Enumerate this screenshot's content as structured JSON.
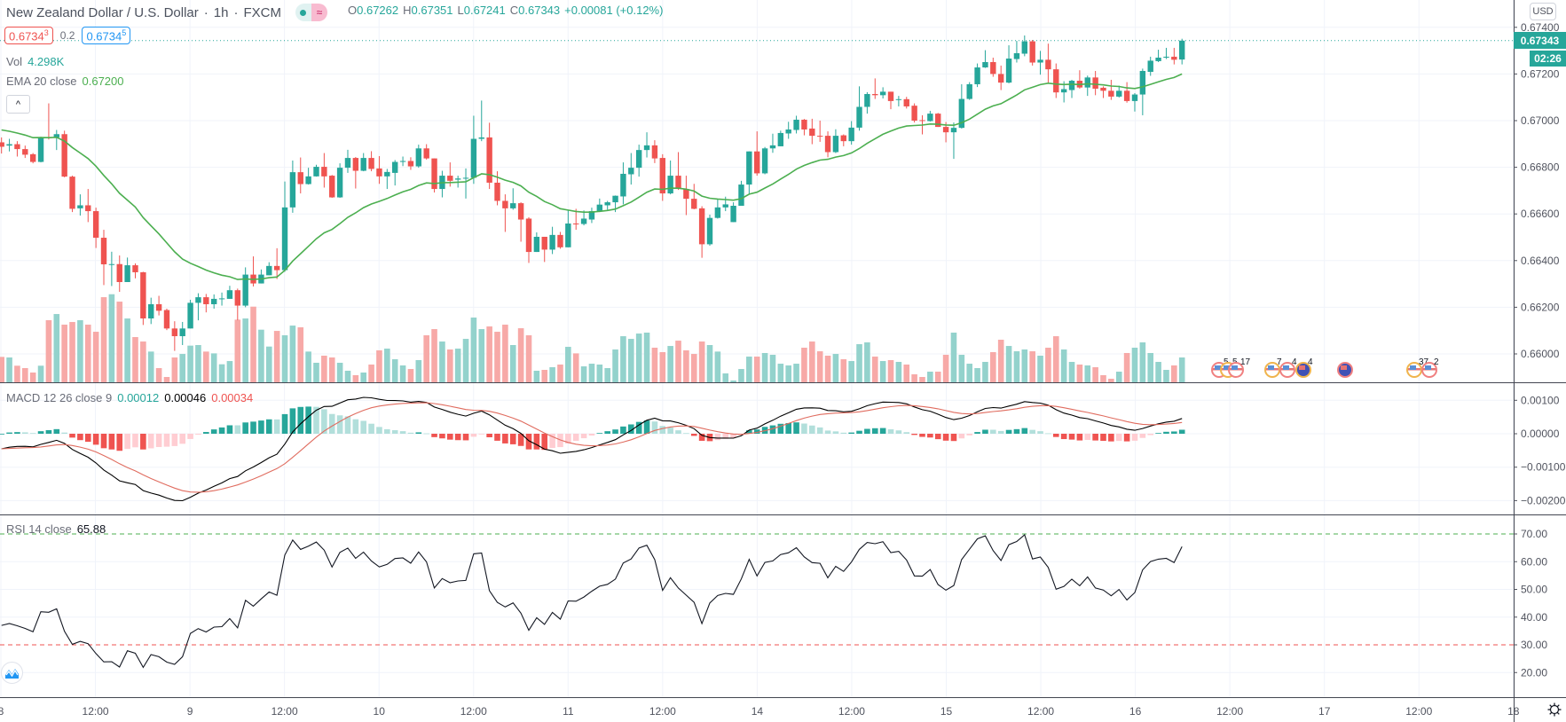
{
  "header": {
    "symbol": "New Zealand Dollar / U.S. Dollar",
    "interval": "1h",
    "exchange": "FXCM",
    "separator": "·",
    "status_icons": [
      "market-open-dot-icon",
      "delayed-data-icon"
    ],
    "delayed_glyph": "≈",
    "ohlc": {
      "o_label": "O",
      "o": "0.67262",
      "h_label": "H",
      "h": "0.67351",
      "l_label": "L",
      "l": "0.67241",
      "c_label": "C",
      "c": "0.67343",
      "change": "+0.00081 (+0.12%)"
    },
    "sell": {
      "price": "0.6734",
      "pip": "3"
    },
    "spread": "0.2",
    "buy": {
      "price": "0.6734",
      "pip": "5"
    },
    "volume": {
      "label": "Vol",
      "value": "4.298K"
    },
    "ema": {
      "label": "EMA 20 close",
      "value": "0.67200"
    },
    "collapse_glyph": "^"
  },
  "macd_legend": {
    "label": "MACD 12 26 close 9",
    "histogram": "0.00012",
    "macd": "0.00046",
    "signal": "0.00034"
  },
  "rsi_legend": {
    "label": "RSI 14 close",
    "value": "65.88"
  },
  "price_axis": {
    "currency": "USD",
    "ticks": [
      "0.67400",
      "0.67200",
      "0.67000",
      "0.66800",
      "0.66600",
      "0.66400",
      "0.66200",
      "0.66000"
    ],
    "last_price": "0.67343",
    "countdown": "02:26"
  },
  "macd_axis": {
    "ticks": [
      "0.00100",
      "0.00000",
      "−0.00100",
      "−0.00200"
    ]
  },
  "rsi_axis": {
    "ticks": [
      "70.00",
      "60.00",
      "50.00",
      "40.00",
      "30.00",
      "20.00"
    ]
  },
  "time_axis": {
    "ticks": [
      "8",
      "12:00",
      "9",
      "12:00",
      "10",
      "12:00",
      "11",
      "12:00",
      "14",
      "12:00",
      "15",
      "12:00",
      "16",
      "12:00",
      "17",
      "12:00",
      "18"
    ]
  },
  "events": [
    {
      "flag": "us-flag-icon",
      "label": "5"
    },
    {
      "flag": "us-flag-icon",
      "label": "5"
    },
    {
      "flag": "us-flag-icon",
      "label": "17"
    },
    {
      "flag": "us-flag-icon",
      "label": "7"
    },
    {
      "flag": "us-flag-icon",
      "label": "4"
    },
    {
      "flag": "nz-flag-icon",
      "label": "4"
    },
    {
      "flag": "nz-flag-icon",
      "label": ""
    },
    {
      "flag": "us-flag-icon",
      "label": "37"
    },
    {
      "flag": "us-flag-icon",
      "label": "2"
    }
  ],
  "colors": {
    "up": "#26a69a",
    "down": "#ef5350",
    "ema": "#4caf50",
    "macd": "#000000",
    "signal": "#e06c5f",
    "rsi": "#131722",
    "overbought": "#4caf50",
    "oversold": "#ef5350"
  },
  "chart_data": {
    "type": "candlestick",
    "interval": "1h",
    "price_range": [
      0.6595,
      0.6745
    ],
    "indicators": {
      "ema": {
        "period": 20,
        "source": "close"
      },
      "macd": {
        "fast": 12,
        "slow": 26,
        "signal": 9
      },
      "rsi": {
        "period": 14,
        "levels": [
          70,
          30
        ]
      }
    },
    "open": [
      0.66907,
      0.66893,
      0.66899,
      0.66878,
      0.66856,
      0.66823,
      0.66928,
      0.66928,
      0.66942,
      0.6676,
      0.66624,
      0.66637,
      0.66612,
      0.66498,
      0.66385,
      0.66385,
      0.66308,
      0.6638,
      0.6635,
      0.66152,
      0.66213,
      0.66188,
      0.66109,
      0.66076,
      0.66109,
      0.66219,
      0.66243,
      0.66213,
      0.66236,
      0.66236,
      0.66273,
      0.66207,
      0.6634,
      0.66302,
      0.66337,
      0.66377,
      0.66359,
      0.66628,
      0.66779,
      0.66728,
      0.66761,
      0.66802,
      0.66764,
      0.66671,
      0.66798,
      0.6684,
      0.66785,
      0.6684,
      0.66795,
      0.66761,
      0.66776,
      0.66823,
      0.66827,
      0.66804,
      0.66881,
      0.66838,
      0.66707,
      0.66764,
      0.66747,
      0.66752,
      0.66755,
      0.66922,
      0.66928,
      0.66734,
      0.66656,
      0.66624,
      0.66646,
      0.6658,
      0.66437,
      0.66502,
      0.66447,
      0.6651,
      0.66457,
      0.66559,
      0.66557,
      0.66576,
      0.66612,
      0.66637,
      0.6665,
      0.66675,
      0.6677,
      0.66798,
      0.66874,
      0.66894,
      0.6684,
      0.66688,
      0.66764,
      0.66707,
      0.66665,
      0.66624,
      0.6647,
      0.66583,
      0.66628,
      0.66565,
      0.66635,
      0.66726,
      0.66868,
      0.66774,
      0.66881,
      0.6689,
      0.66945,
      0.6696,
      0.67004,
      0.66966,
      0.66935,
      0.66935,
      0.66865,
      0.66937,
      0.66912,
      0.6697,
      0.67059,
      0.67114,
      0.67109,
      0.67124,
      0.67089,
      0.67092,
      0.67064,
      0.67002,
      0.66998,
      0.6703,
      0.66973,
      0.6695,
      0.66969,
      0.67093,
      0.67156,
      0.67228,
      0.67251,
      0.672,
      0.67163,
      0.67264,
      0.67287,
      0.6734,
      0.67249,
      0.67261,
      0.6722,
      0.67121,
      0.67131,
      0.67171,
      0.67142,
      0.67185,
      0.67141,
      0.67128,
      0.67103,
      0.67128,
      0.67084,
      0.67112,
      0.67209,
      0.67255,
      0.6727,
      0.67274,
      0.67262
    ],
    "high": [
      0.66928,
      0.66922,
      0.66912,
      0.66893,
      0.66861,
      0.66931,
      0.67074,
      0.6696,
      0.66957,
      0.66764,
      0.66684,
      0.66707,
      0.66627,
      0.66532,
      0.66438,
      0.66422,
      0.66413,
      0.66388,
      0.66352,
      0.66241,
      0.66249,
      0.66194,
      0.6614,
      0.66137,
      0.66232,
      0.6626,
      0.66257,
      0.66255,
      0.66263,
      0.66292,
      0.6628,
      0.66371,
      0.66418,
      0.66362,
      0.66393,
      0.66453,
      0.66739,
      0.66829,
      0.66842,
      0.66798,
      0.66811,
      0.66861,
      0.66767,
      0.66817,
      0.66875,
      0.66844,
      0.66861,
      0.66869,
      0.66848,
      0.66793,
      0.66831,
      0.66846,
      0.66843,
      0.66897,
      0.66899,
      0.66838,
      0.66785,
      0.66821,
      0.66764,
      0.66795,
      0.67021,
      0.67086,
      0.66991,
      0.66783,
      0.66684,
      0.6671,
      0.6665,
      0.66586,
      0.66521,
      0.66502,
      0.66545,
      0.66523,
      0.66615,
      0.66622,
      0.66615,
      0.66627,
      0.66666,
      0.66656,
      0.66679,
      0.66821,
      0.66861,
      0.66897,
      0.6695,
      0.66916,
      0.66856,
      0.66829,
      0.66865,
      0.66764,
      0.66729,
      0.66633,
      0.66597,
      0.66662,
      0.66674,
      0.6665,
      0.66742,
      0.66868,
      0.66954,
      0.66887,
      0.66944,
      0.66957,
      0.66995,
      0.67021,
      0.67007,
      0.67008,
      0.67,
      0.66954,
      0.66963,
      0.66941,
      0.66998,
      0.67147,
      0.67122,
      0.67181,
      0.67143,
      0.67124,
      0.67106,
      0.67102,
      0.67074,
      0.67023,
      0.67042,
      0.67033,
      0.66994,
      0.66992,
      0.67156,
      0.67165,
      0.67245,
      0.67302,
      0.6727,
      0.67236,
      0.67323,
      0.67342,
      0.67365,
      0.67346,
      0.67299,
      0.6733,
      0.67245,
      0.67169,
      0.67175,
      0.67216,
      0.67193,
      0.67213,
      0.67147,
      0.67175,
      0.6715,
      0.67165,
      0.67118,
      0.67223,
      0.67274,
      0.67304,
      0.67312,
      0.67312,
      0.67351
    ],
    "low": [
      0.66859,
      0.66868,
      0.66846,
      0.6684,
      0.66817,
      0.66821,
      0.66919,
      0.66874,
      0.66757,
      0.66608,
      0.66593,
      0.66565,
      0.66454,
      0.66295,
      0.66291,
      0.66266,
      0.66308,
      0.66324,
      0.66124,
      0.66128,
      0.66165,
      0.66102,
      0.66013,
      0.66038,
      0.66109,
      0.66144,
      0.66178,
      0.66194,
      0.66207,
      0.66236,
      0.66144,
      0.662,
      0.66289,
      0.66302,
      0.66337,
      0.66321,
      0.66352,
      0.66605,
      0.66688,
      0.66726,
      0.6676,
      0.66713,
      0.66669,
      0.66669,
      0.66776,
      0.66709,
      0.66783,
      0.66783,
      0.66729,
      0.66707,
      0.66722,
      0.66805,
      0.66789,
      0.66798,
      0.66833,
      0.66692,
      0.66671,
      0.66717,
      0.66713,
      0.66666,
      0.66729,
      0.66912,
      0.66707,
      0.66637,
      0.66523,
      0.66618,
      0.66481,
      0.6639,
      0.66437,
      0.66394,
      0.66428,
      0.66451,
      0.66457,
      0.66532,
      0.66551,
      0.66561,
      0.66608,
      0.66618,
      0.66608,
      0.66641,
      0.66726,
      0.6676,
      0.66842,
      0.66818,
      0.66656,
      0.66684,
      0.66703,
      0.66595,
      0.6662,
      0.66412,
      0.66464,
      0.6658,
      0.66612,
      0.66565,
      0.66635,
      0.66688,
      0.66764,
      0.6677,
      0.66862,
      0.6689,
      0.66922,
      0.66945,
      0.66937,
      0.66899,
      0.66909,
      0.66843,
      0.66861,
      0.6689,
      0.66897,
      0.66957,
      0.6703,
      0.67093,
      0.67095,
      0.67049,
      0.67061,
      0.67052,
      0.66992,
      0.66941,
      0.66996,
      0.66973,
      0.66907,
      0.66836,
      0.66966,
      0.67089,
      0.67144,
      0.67226,
      0.67188,
      0.67131,
      0.6716,
      0.67249,
      0.67276,
      0.67236,
      0.67197,
      0.67163,
      0.67097,
      0.67078,
      0.67097,
      0.67137,
      0.67106,
      0.67109,
      0.67097,
      0.67089,
      0.67099,
      0.67077,
      0.67039,
      0.67023,
      0.67192,
      0.67251,
      0.67264,
      0.67241,
      0.67241
    ],
    "close": [
      0.66888,
      0.66899,
      0.66878,
      0.66854,
      0.66823,
      0.66928,
      0.66924,
      0.66942,
      0.6676,
      0.66622,
      0.66637,
      0.66612,
      0.66498,
      0.66384,
      0.66385,
      0.66308,
      0.6638,
      0.6635,
      0.66152,
      0.66213,
      0.66185,
      0.66109,
      0.66076,
      0.66109,
      0.66219,
      0.66243,
      0.66213,
      0.66236,
      0.66238,
      0.66273,
      0.66207,
      0.6634,
      0.66302,
      0.6634,
      0.66377,
      0.66359,
      0.66628,
      0.66779,
      0.66728,
      0.66761,
      0.66802,
      0.66761,
      0.66671,
      0.66798,
      0.6684,
      0.66785,
      0.6684,
      0.66793,
      0.66761,
      0.6678,
      0.66823,
      0.66827,
      0.66804,
      0.66881,
      0.66838,
      0.66707,
      0.66764,
      0.66742,
      0.66752,
      0.66755,
      0.66922,
      0.66928,
      0.66734,
      0.66656,
      0.66624,
      0.66646,
      0.66576,
      0.66437,
      0.66502,
      0.66447,
      0.6651,
      0.66457,
      0.66559,
      0.66557,
      0.6658,
      0.66612,
      0.6664,
      0.6665,
      0.66678,
      0.66772,
      0.66798,
      0.66874,
      0.66894,
      0.66838,
      0.66688,
      0.66764,
      0.66707,
      0.66665,
      0.66622,
      0.6647,
      0.66583,
      0.66628,
      0.66641,
      0.66635,
      0.66726,
      0.66868,
      0.66774,
      0.66881,
      0.66894,
      0.66947,
      0.66962,
      0.67004,
      0.66962,
      0.66935,
      0.66932,
      0.66865,
      0.66935,
      0.66912,
      0.6697,
      0.67059,
      0.67114,
      0.67109,
      0.67124,
      0.67084,
      0.67092,
      0.67061,
      0.67,
      0.66999,
      0.6703,
      0.66973,
      0.6695,
      0.66969,
      0.67093,
      0.67156,
      0.67228,
      0.67251,
      0.672,
      0.67163,
      0.67266,
      0.67289,
      0.6734,
      0.67249,
      0.67261,
      0.6722,
      0.67121,
      0.67135,
      0.67171,
      0.67142,
      0.67185,
      0.67137,
      0.67128,
      0.67103,
      0.67128,
      0.67084,
      0.67112,
      0.67213,
      0.67257,
      0.6727,
      0.67274,
      0.67261,
      0.67343
    ],
    "volume_k": [
      4.4,
      4.3,
      2.87,
      2.46,
      1.69,
      2.87,
      10.75,
      11.82,
      9.98,
      10.44,
      10.75,
      9.98,
      8.75,
      14.74,
      15.25,
      13.97,
      11.05,
      7.83,
      7.06,
      5.32,
      2.46,
      0.92,
      4.3,
      4.91,
      6.35,
      6.45,
      5.32,
      5.01,
      3.12,
      3.68,
      10.85,
      11.05,
      13.1,
      9.11,
      6.19,
      8.9,
      8.14,
      9.82,
      9.52,
      5.32,
      3.38,
      4.61,
      4.3,
      3.38,
      2.0,
      1.23,
      1.69,
      3.07,
      5.53,
      5.83,
      3.99,
      2.92,
      2.3,
      3.84,
      8.14,
      9.21,
      7.06,
      5.68,
      5.83,
      7.52,
      11.21,
      9.21,
      9.67,
      8.75,
      9.98,
      6.45,
      9.36,
      8.14,
      2.0,
      2.15,
      2.61,
      3.07,
      6.14,
      5.01,
      2.76,
      3.22,
      3.07,
      2.46,
      5.68,
      7.98,
      7.52,
      8.44,
      8.6,
      5.99,
      5.22,
      6.29,
      7.21,
      5.53,
      4.91,
      7.06,
      6.45,
      5.32,
      1.54,
      0.31,
      2.3,
      4.45,
      4.45,
      5.07,
      4.76,
      3.22,
      2.92,
      3.22,
      5.99,
      7.06,
      5.37,
      4.61,
      4.91,
      3.99,
      3.68,
      6.6,
      6.91,
      4.45,
      3.68,
      3.84,
      3.53,
      3.07,
      1.38,
      0.92,
      1.84,
      1.84,
      4.76,
      8.6,
      4.76,
      3.22,
      2.46,
      3.53,
      5.22,
      7.37,
      6.29,
      5.37,
      5.68,
      5.37,
      4.61,
      5.99,
      7.98,
      5.68,
      3.53,
      3.07,
      2.92,
      2.61,
      1.23,
      0.61,
      1.84,
      5.07,
      5.99,
      6.91,
      5.07,
      3.53,
      2.15,
      2.92,
      4.298
    ]
  }
}
